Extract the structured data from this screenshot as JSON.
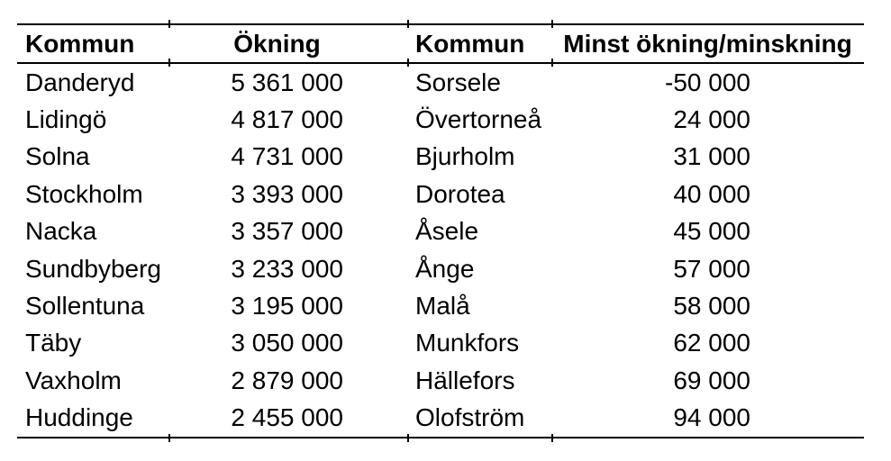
{
  "table": {
    "headers": [
      "Kommun",
      "Ökning",
      "Kommun",
      "Minst ökning/minskning"
    ],
    "rows": [
      [
        "Danderyd",
        "5 361 000",
        "Sorsele",
        "-50 000"
      ],
      [
        "Lidingö",
        "4 817 000",
        "Övertorneå",
        "24 000"
      ],
      [
        "Solna",
        "4 731 000",
        "Bjurholm",
        "31 000"
      ],
      [
        "Stockholm",
        "3 393 000",
        "Dorotea",
        "40 000"
      ],
      [
        "Nacka",
        "3 357 000",
        "Åsele",
        "45 000"
      ],
      [
        "Sundbyberg",
        "3 233 000",
        "Ånge",
        "57 000"
      ],
      [
        "Sollentuna",
        "3 195 000",
        "Malå",
        "58 000"
      ],
      [
        "Täby",
        "3 050 000",
        "Munkfors",
        "62 000"
      ],
      [
        "Vaxholm",
        "2 879 000",
        "Hällefors",
        "69 000"
      ],
      [
        "Huddinge",
        "2 455 000",
        "Olofström",
        "94 000"
      ]
    ],
    "colors": {
      "text": "#000000",
      "background": "#ffffff",
      "rule": "#000000"
    }
  }
}
